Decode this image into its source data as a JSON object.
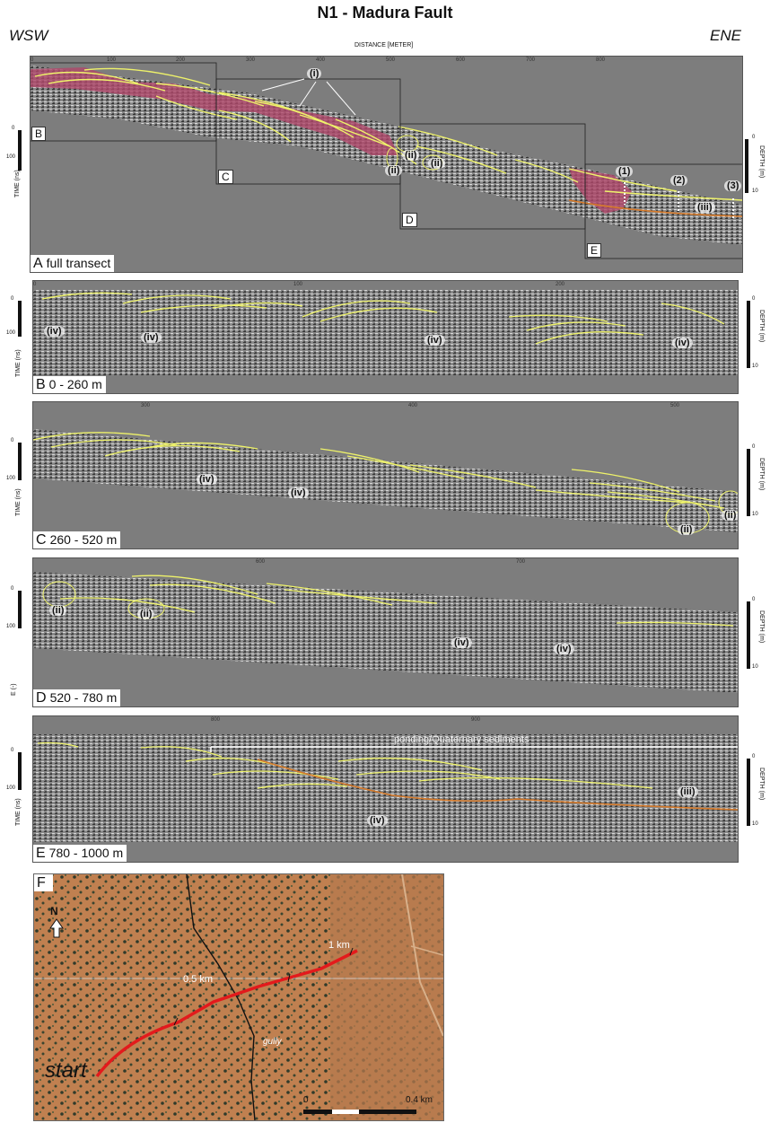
{
  "title": "N1 - Madura Fault",
  "direction_left": "WSW",
  "direction_right": "ENE",
  "distance_axis_label": "DISTANCE [METER]",
  "time_label": "TIME (ns)",
  "depth_label": "DEPTH (m)",
  "time_ticks": [
    "0",
    "100"
  ],
  "depth_ticks": [
    "0",
    "10"
  ],
  "panelA": {
    "letter": "A",
    "caption": "full transect",
    "x_ticks": [
      "0",
      "100",
      "200",
      "300",
      "400",
      "500",
      "600",
      "700",
      "800"
    ],
    "box_labels": [
      "B",
      "C",
      "D",
      "E"
    ],
    "annotations": {
      "i": "(i)",
      "ii": "(ii)",
      "iii": "(iii)",
      "n1": "(1)",
      "n2": "(2)",
      "n3": "(3)"
    }
  },
  "panelB": {
    "letter": "B",
    "caption": "0 - 260 m",
    "x_ticks": [
      "0",
      "100",
      "200"
    ],
    "tag": "(iv)"
  },
  "panelC": {
    "letter": "C",
    "caption": "260 - 520 m",
    "x_ticks": [
      "300",
      "400",
      "500"
    ],
    "tag_iv": "(iv)",
    "tag_ii": "(ii)"
  },
  "panelD": {
    "letter": "D",
    "caption": "520 - 780 m",
    "x_ticks": [
      "600",
      "700"
    ],
    "tag_iv": "(iv)",
    "tag_ii": "(ii)",
    "left_label": "E (-)"
  },
  "panelE": {
    "letter": "E",
    "caption": "780 - 1000 m",
    "x_ticks": [
      "800",
      "900"
    ],
    "tag_iv": "(iv)",
    "tag_iii": "(iii)",
    "ponding": "ponding/Quaternary sediments"
  },
  "panelF": {
    "letter": "F",
    "north": "N",
    "start": "start",
    "km1": "1 km",
    "km05": "0.5 km",
    "gully": "gully",
    "scale0": "0",
    "scale04": "0.4 km"
  },
  "colors": {
    "gpr_bg": "#7d7d7d",
    "reflector": "#eef26a",
    "fault_fill": "#b0476a",
    "orange": "#d67a2a",
    "track": "#e31a1c"
  }
}
